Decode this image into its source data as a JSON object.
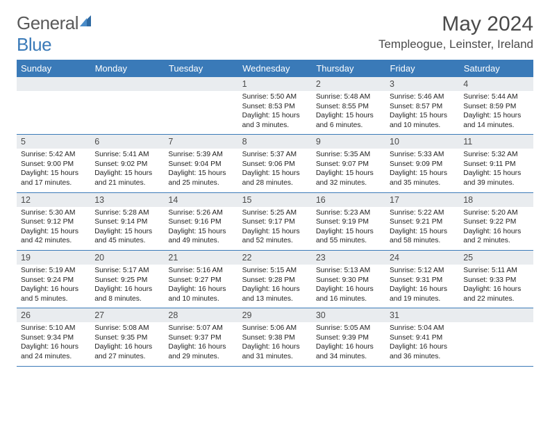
{
  "brand": {
    "name_a": "General",
    "name_b": "Blue"
  },
  "title": "May 2024",
  "location": "Templeogue, Leinster, Ireland",
  "colors": {
    "header_bg": "#3a7ab8",
    "header_text": "#ffffff",
    "daynum_bg": "#e9ecef",
    "text": "#222222",
    "border": "#3a7ab8",
    "brand_grey": "#5a5a5a",
    "brand_blue": "#3a7ab8"
  },
  "daynames": [
    "Sunday",
    "Monday",
    "Tuesday",
    "Wednesday",
    "Thursday",
    "Friday",
    "Saturday"
  ],
  "weeks": [
    [
      {
        "day": "",
        "sunrise": "",
        "sunset": "",
        "daylight": ""
      },
      {
        "day": "",
        "sunrise": "",
        "sunset": "",
        "daylight": ""
      },
      {
        "day": "",
        "sunrise": "",
        "sunset": "",
        "daylight": ""
      },
      {
        "day": "1",
        "sunrise": "5:50 AM",
        "sunset": "8:53 PM",
        "daylight": "15 hours and 3 minutes."
      },
      {
        "day": "2",
        "sunrise": "5:48 AM",
        "sunset": "8:55 PM",
        "daylight": "15 hours and 6 minutes."
      },
      {
        "day": "3",
        "sunrise": "5:46 AM",
        "sunset": "8:57 PM",
        "daylight": "15 hours and 10 minutes."
      },
      {
        "day": "4",
        "sunrise": "5:44 AM",
        "sunset": "8:59 PM",
        "daylight": "15 hours and 14 minutes."
      }
    ],
    [
      {
        "day": "5",
        "sunrise": "5:42 AM",
        "sunset": "9:00 PM",
        "daylight": "15 hours and 17 minutes."
      },
      {
        "day": "6",
        "sunrise": "5:41 AM",
        "sunset": "9:02 PM",
        "daylight": "15 hours and 21 minutes."
      },
      {
        "day": "7",
        "sunrise": "5:39 AM",
        "sunset": "9:04 PM",
        "daylight": "15 hours and 25 minutes."
      },
      {
        "day": "8",
        "sunrise": "5:37 AM",
        "sunset": "9:06 PM",
        "daylight": "15 hours and 28 minutes."
      },
      {
        "day": "9",
        "sunrise": "5:35 AM",
        "sunset": "9:07 PM",
        "daylight": "15 hours and 32 minutes."
      },
      {
        "day": "10",
        "sunrise": "5:33 AM",
        "sunset": "9:09 PM",
        "daylight": "15 hours and 35 minutes."
      },
      {
        "day": "11",
        "sunrise": "5:32 AM",
        "sunset": "9:11 PM",
        "daylight": "15 hours and 39 minutes."
      }
    ],
    [
      {
        "day": "12",
        "sunrise": "5:30 AM",
        "sunset": "9:12 PM",
        "daylight": "15 hours and 42 minutes."
      },
      {
        "day": "13",
        "sunrise": "5:28 AM",
        "sunset": "9:14 PM",
        "daylight": "15 hours and 45 minutes."
      },
      {
        "day": "14",
        "sunrise": "5:26 AM",
        "sunset": "9:16 PM",
        "daylight": "15 hours and 49 minutes."
      },
      {
        "day": "15",
        "sunrise": "5:25 AM",
        "sunset": "9:17 PM",
        "daylight": "15 hours and 52 minutes."
      },
      {
        "day": "16",
        "sunrise": "5:23 AM",
        "sunset": "9:19 PM",
        "daylight": "15 hours and 55 minutes."
      },
      {
        "day": "17",
        "sunrise": "5:22 AM",
        "sunset": "9:21 PM",
        "daylight": "15 hours and 58 minutes."
      },
      {
        "day": "18",
        "sunrise": "5:20 AM",
        "sunset": "9:22 PM",
        "daylight": "16 hours and 2 minutes."
      }
    ],
    [
      {
        "day": "19",
        "sunrise": "5:19 AM",
        "sunset": "9:24 PM",
        "daylight": "16 hours and 5 minutes."
      },
      {
        "day": "20",
        "sunrise": "5:17 AM",
        "sunset": "9:25 PM",
        "daylight": "16 hours and 8 minutes."
      },
      {
        "day": "21",
        "sunrise": "5:16 AM",
        "sunset": "9:27 PM",
        "daylight": "16 hours and 10 minutes."
      },
      {
        "day": "22",
        "sunrise": "5:15 AM",
        "sunset": "9:28 PM",
        "daylight": "16 hours and 13 minutes."
      },
      {
        "day": "23",
        "sunrise": "5:13 AM",
        "sunset": "9:30 PM",
        "daylight": "16 hours and 16 minutes."
      },
      {
        "day": "24",
        "sunrise": "5:12 AM",
        "sunset": "9:31 PM",
        "daylight": "16 hours and 19 minutes."
      },
      {
        "day": "25",
        "sunrise": "5:11 AM",
        "sunset": "9:33 PM",
        "daylight": "16 hours and 22 minutes."
      }
    ],
    [
      {
        "day": "26",
        "sunrise": "5:10 AM",
        "sunset": "9:34 PM",
        "daylight": "16 hours and 24 minutes."
      },
      {
        "day": "27",
        "sunrise": "5:08 AM",
        "sunset": "9:35 PM",
        "daylight": "16 hours and 27 minutes."
      },
      {
        "day": "28",
        "sunrise": "5:07 AM",
        "sunset": "9:37 PM",
        "daylight": "16 hours and 29 minutes."
      },
      {
        "day": "29",
        "sunrise": "5:06 AM",
        "sunset": "9:38 PM",
        "daylight": "16 hours and 31 minutes."
      },
      {
        "day": "30",
        "sunrise": "5:05 AM",
        "sunset": "9:39 PM",
        "daylight": "16 hours and 34 minutes."
      },
      {
        "day": "31",
        "sunrise": "5:04 AM",
        "sunset": "9:41 PM",
        "daylight": "16 hours and 36 minutes."
      },
      {
        "day": "",
        "sunrise": "",
        "sunset": "",
        "daylight": ""
      }
    ]
  ],
  "labels": {
    "sunrise": "Sunrise:",
    "sunset": "Sunset:",
    "daylight": "Daylight:"
  }
}
